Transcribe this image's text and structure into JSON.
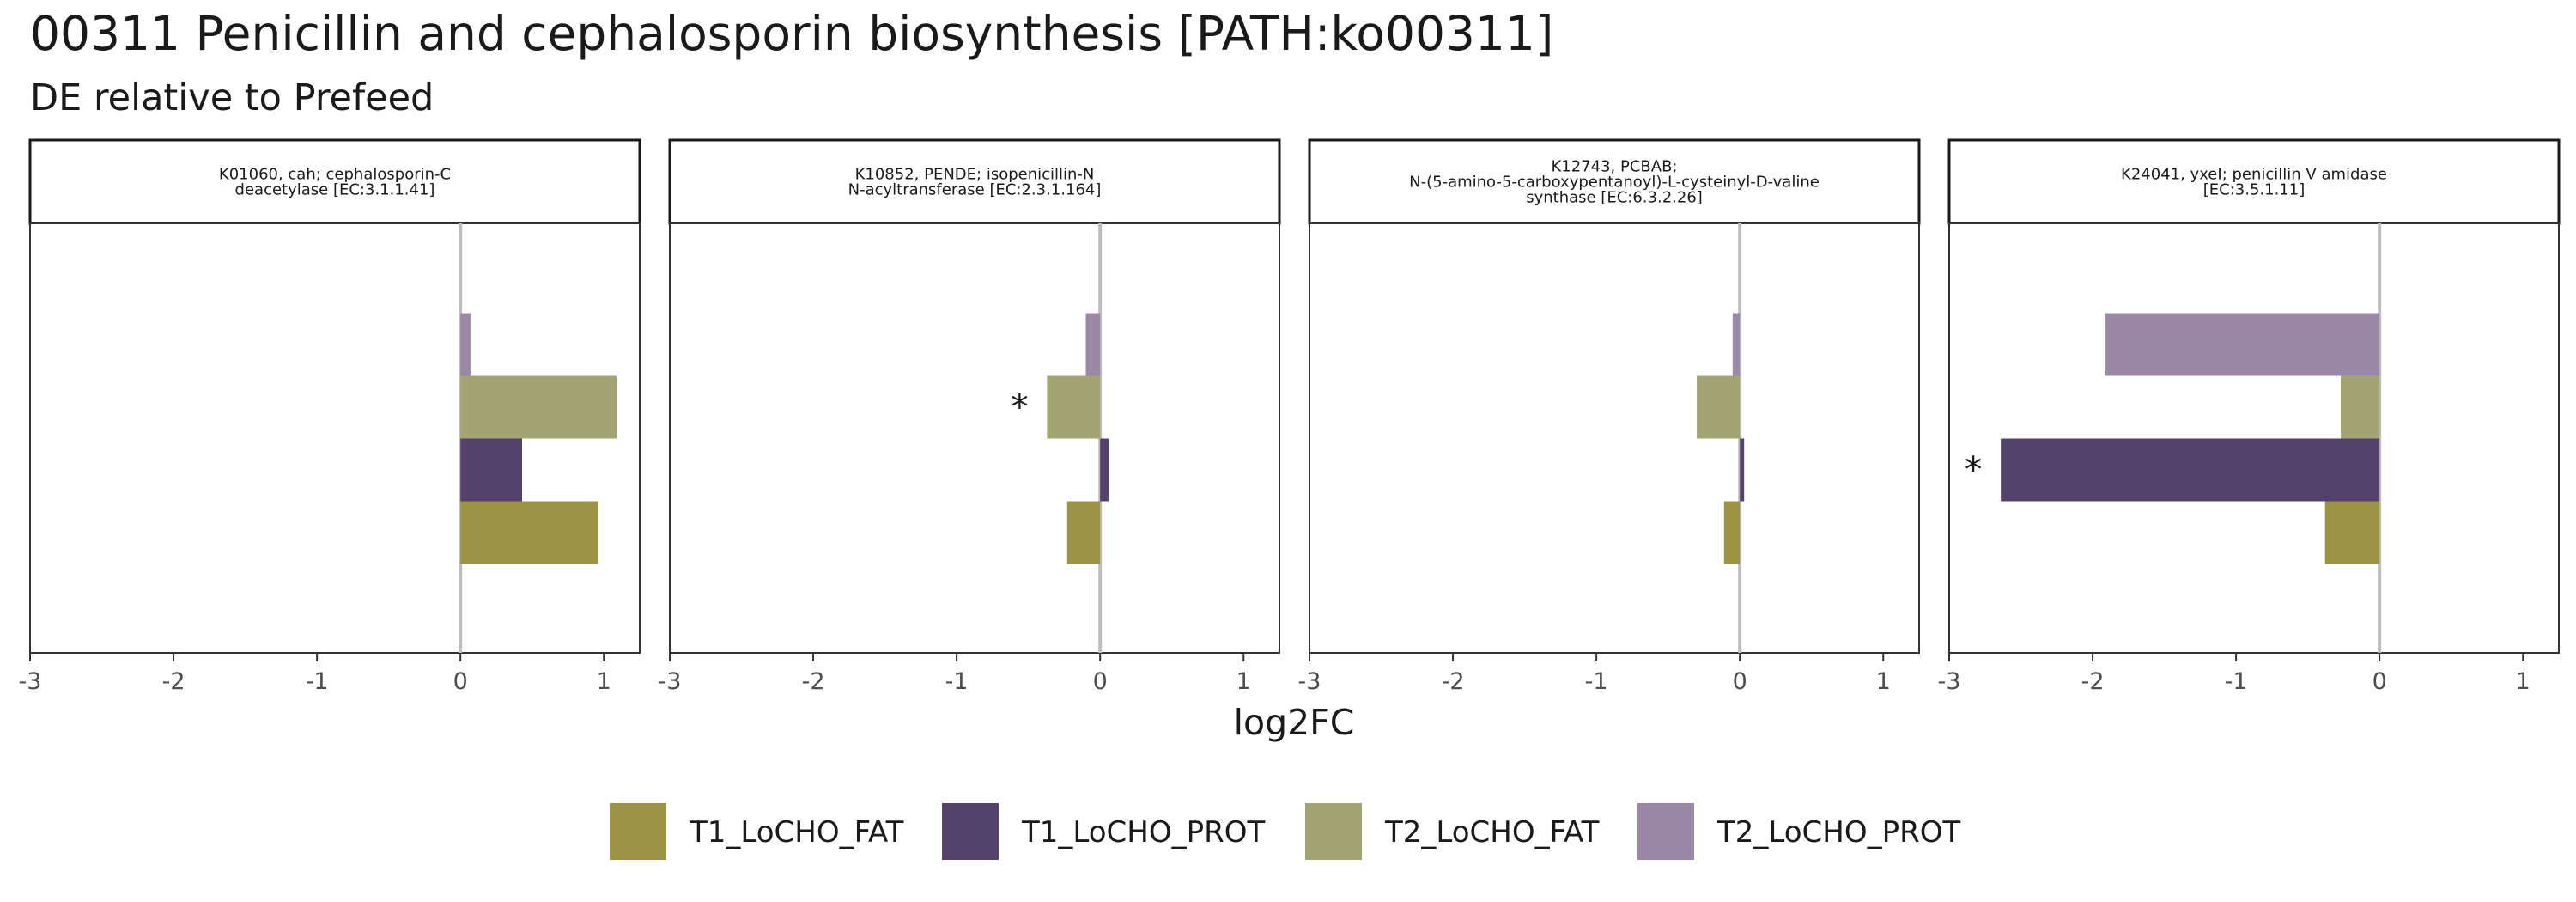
{
  "chart_data": {
    "type": "bar",
    "orientation": "horizontal",
    "title": "00311 Penicillin and cephalosporin biosynthesis [PATH:ko00311]",
    "subtitle": "DE relative to Prefeed",
    "xlabel": "log2FC",
    "xlim": [
      -3,
      1.25
    ],
    "xticks": [
      -3,
      -2,
      -1,
      0,
      1
    ],
    "xtick_labels": [
      "-3",
      "-2",
      "-1",
      "0",
      "1"
    ],
    "legend_position": "bottom",
    "grid": false,
    "series": [
      {
        "name": "T1_LoCHO_FAT",
        "color": "#9c9345"
      },
      {
        "name": "T1_LoCHO_PROT",
        "color": "#54426d"
      },
      {
        "name": "T2_LoCHO_FAT",
        "color": "#a2a474"
      },
      {
        "name": "T2_LoCHO_PROT",
        "color": "#9b88a7"
      }
    ],
    "panels": [
      {
        "strip": [
          "K01060, cah; cephalosporin-C",
          "deacetylase [EC:3.1.1.41]"
        ],
        "values": [
          0.96,
          0.43,
          1.09,
          0.07
        ],
        "significant": [
          false,
          false,
          false,
          false
        ]
      },
      {
        "strip": [
          "K10852, PENDE; isopenicillin-N",
          "N-acyltransferase [EC:2.3.1.164]"
        ],
        "values": [
          -0.23,
          0.06,
          -0.37,
          -0.1
        ],
        "significant": [
          false,
          false,
          true,
          false
        ]
      },
      {
        "strip": [
          "K12743, PCBAB;",
          "N-(5-amino-5-carboxypentanoyl)-L-cysteinyl-D-valine",
          "synthase [EC:6.3.2.26]"
        ],
        "values": [
          -0.11,
          0.03,
          -0.3,
          -0.05
        ],
        "significant": [
          false,
          false,
          false,
          false
        ]
      },
      {
        "strip": [
          "K24041, yxeI; penicillin V amidase",
          "[EC:3.5.1.11]"
        ],
        "values": [
          -0.38,
          -2.64,
          -0.27,
          -1.91
        ],
        "significant": [
          false,
          true,
          false,
          false
        ]
      }
    ],
    "significance_marker": "*"
  }
}
